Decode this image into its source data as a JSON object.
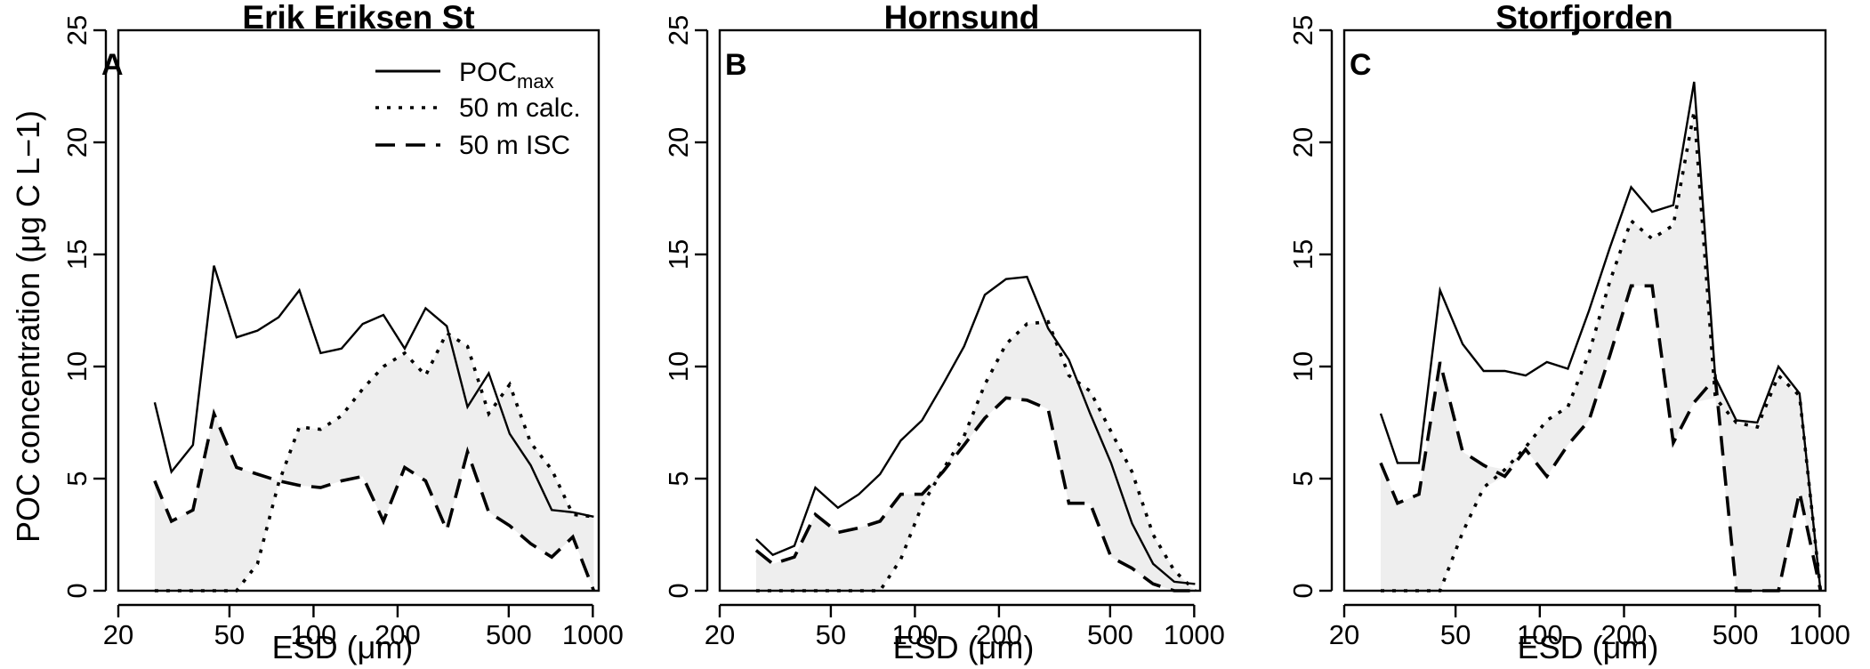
{
  "chart_data": [
    {
      "type": "line",
      "panel_letter": "A",
      "title": "Erik Eriksen St",
      "xlabel": "ESD (μm)",
      "ylabel": "POC concentration (μg C L−1)",
      "xscale": "log",
      "xlim": [
        20,
        1050
      ],
      "ylim": [
        0,
        25
      ],
      "xticks": [
        20,
        50,
        100,
        200,
        500,
        1000
      ],
      "yticks": [
        0,
        5,
        10,
        15,
        20,
        25
      ],
      "grid": false,
      "shaded_between": [
        "50 m calc.",
        "50 m ISC"
      ],
      "legend": {
        "placement": "top-right",
        "entries": [
          {
            "label": "POC",
            "subscript": "max",
            "style": "solid"
          },
          {
            "label": "50 m calc.",
            "style": "dotted"
          },
          {
            "label": "50 m ISC",
            "style": "dashed"
          }
        ]
      },
      "x": [
        27,
        31,
        37,
        44,
        53,
        63,
        75,
        89,
        106,
        126,
        150,
        178,
        212,
        252,
        300,
        356,
        424,
        504,
        599,
        713,
        848,
        1008
      ],
      "series": [
        {
          "name": "POCmax",
          "style": "solid",
          "values": [
            8.4,
            5.3,
            6.5,
            14.5,
            11.3,
            11.6,
            12.2,
            13.4,
            10.6,
            10.8,
            11.9,
            12.3,
            10.8,
            12.6,
            11.8,
            8.2,
            9.7,
            7.0,
            5.6,
            3.6,
            3.5,
            3.3
          ]
        },
        {
          "name": "50 m calc.",
          "style": "dotted",
          "values": [
            0,
            0,
            0,
            0,
            0,
            1.2,
            4.8,
            7.3,
            7.2,
            7.8,
            9.0,
            10.0,
            10.6,
            9.6,
            11.5,
            10.9,
            7.9,
            9.2,
            6.6,
            5.4,
            3.4,
            3.3
          ]
        },
        {
          "name": "50 m ISC",
          "style": "dashed",
          "values": [
            4.9,
            3.1,
            3.6,
            7.9,
            5.5,
            5.2,
            4.9,
            4.7,
            4.6,
            4.9,
            5.1,
            3.1,
            5.5,
            4.9,
            2.7,
            6.2,
            3.5,
            2.9,
            2.1,
            1.5,
            2.4,
            0
          ]
        }
      ]
    },
    {
      "type": "line",
      "panel_letter": "B",
      "title": "Hornsund",
      "xlabel": "ESD (μm)",
      "ylabel": "",
      "xscale": "log",
      "xlim": [
        20,
        1050
      ],
      "ylim": [
        0,
        25
      ],
      "xticks": [
        20,
        50,
        100,
        200,
        500,
        1000
      ],
      "yticks": [
        0,
        5,
        10,
        15,
        20,
        25
      ],
      "grid": false,
      "shaded_between": [
        "50 m calc.",
        "50 m ISC"
      ],
      "x": [
        27,
        31,
        37,
        44,
        53,
        63,
        75,
        89,
        106,
        126,
        150,
        178,
        212,
        252,
        300,
        356,
        424,
        504,
        599,
        713,
        848,
        1008
      ],
      "series": [
        {
          "name": "POCmax",
          "style": "solid",
          "values": [
            2.3,
            1.6,
            2.0,
            4.6,
            3.7,
            4.3,
            5.2,
            6.7,
            7.6,
            9.2,
            10.9,
            13.2,
            13.9,
            14.0,
            11.7,
            10.3,
            7.9,
            5.7,
            3.0,
            1.2,
            0.4,
            0.3
          ]
        },
        {
          "name": "50 m calc.",
          "style": "dotted",
          "values": [
            0,
            0,
            0,
            0,
            0,
            0,
            0,
            1.4,
            3.8,
            5.4,
            6.9,
            9.2,
            11.0,
            11.9,
            12.0,
            9.6,
            8.9,
            7.1,
            5.3,
            2.5,
            0.9,
            0
          ]
        },
        {
          "name": "50 m ISC",
          "style": "dashed",
          "values": [
            1.8,
            1.2,
            1.5,
            3.4,
            2.6,
            2.8,
            3.1,
            4.3,
            4.3,
            5.3,
            6.5,
            7.7,
            8.6,
            8.5,
            8.1,
            3.9,
            3.9,
            1.5,
            1.0,
            0.3,
            0,
            0
          ]
        }
      ]
    },
    {
      "type": "line",
      "panel_letter": "C",
      "title": "Storfjorden",
      "xlabel": "ESD (μm)",
      "ylabel": "",
      "xscale": "log",
      "xlim": [
        20,
        1050
      ],
      "ylim": [
        0,
        25
      ],
      "xticks": [
        20,
        50,
        100,
        200,
        500,
        1000
      ],
      "yticks": [
        0,
        5,
        10,
        15,
        20,
        25
      ],
      "grid": false,
      "shaded_between": [
        "50 m calc.",
        "50 m ISC"
      ],
      "x": [
        27,
        31,
        37,
        44,
        53,
        63,
        75,
        89,
        106,
        126,
        150,
        178,
        212,
        252,
        300,
        356,
        424,
        504,
        599,
        713,
        848,
        1008
      ],
      "series": [
        {
          "name": "POCmax",
          "style": "solid",
          "values": [
            7.9,
            5.7,
            5.7,
            13.4,
            11.0,
            9.8,
            9.8,
            9.6,
            10.2,
            9.9,
            12.5,
            15.3,
            18.0,
            16.9,
            17.2,
            22.7,
            9.5,
            7.6,
            7.5,
            10.0,
            8.8,
            0
          ]
        },
        {
          "name": "50 m calc.",
          "style": "dotted",
          "values": [
            0,
            0,
            0,
            0,
            2.6,
            4.6,
            5.4,
            6.4,
            7.6,
            8.2,
            10.6,
            13.8,
            16.5,
            15.7,
            16.3,
            21.4,
            8.6,
            7.5,
            7.3,
            9.6,
            8.7,
            0
          ]
        },
        {
          "name": "50 m ISC",
          "style": "dashed",
          "values": [
            5.7,
            3.9,
            4.3,
            10.2,
            6.2,
            5.6,
            5.1,
            6.3,
            5.1,
            6.5,
            7.6,
            10.5,
            13.6,
            13.6,
            6.6,
            8.4,
            9.5,
            0,
            0,
            0,
            4.4,
            0
          ]
        }
      ]
    }
  ]
}
